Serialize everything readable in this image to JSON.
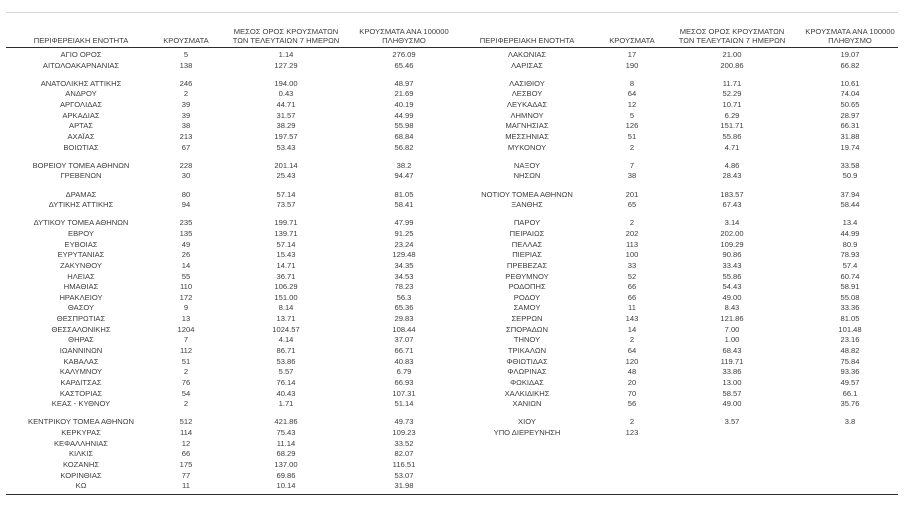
{
  "headers": {
    "region": "ΠΕΡΙΦΕΡΕΙΑΚΗ ΕΝΟΤΗΤΑ",
    "cases": "ΚΡΟΥΣΜΑΤΑ",
    "avg_line1": "ΜΕΣΟΣ ΟΡΟΣ ΚΡΟΥΣΜΑΤΩΝ",
    "avg_line2": "ΤΩΝ ΤΕΛΕΥΤΑΙΩΝ 7 ΗΜΕΡΩΝ",
    "per_line1": "ΚΡΟΥΣΜΑΤΑ ΑΝΑ 100000",
    "per_line2": "ΠΛΗΘΥΣΜΟ"
  },
  "colors": {
    "background": "#ffffff",
    "text": "#3d3d3d",
    "rule_dark": "#2b2b2b",
    "rule_light": "#d6d6d6"
  },
  "tables": {
    "left": {
      "gaps_after": [
        2,
        9,
        11,
        13,
        31
      ],
      "rows": [
        {
          "name": "ΑΓΙΟ ΟΡΟΣ",
          "cases": "5",
          "avg7": "1.14",
          "per100k": "276.09"
        },
        {
          "name": "ΑΙΤΩΛΟΑΚΑΡΝΑΝΙΑΣ",
          "cases": "138",
          "avg7": "127.29",
          "per100k": "65.46"
        },
        {
          "name": "ΑΝΑΤΟΛΙΚΗΣ ΑΤΤΙΚΗΣ",
          "cases": "246",
          "avg7": "194.00",
          "per100k": "48.97"
        },
        {
          "name": "ΑΝΔΡΟΥ",
          "cases": "2",
          "avg7": "0.43",
          "per100k": "21.69"
        },
        {
          "name": "ΑΡΓΟΛΙΔΑΣ",
          "cases": "39",
          "avg7": "44.71",
          "per100k": "40.19"
        },
        {
          "name": "ΑΡΚΑΔΙΑΣ",
          "cases": "39",
          "avg7": "31.57",
          "per100k": "44.99"
        },
        {
          "name": "ΑΡΤΑΣ",
          "cases": "38",
          "avg7": "38.29",
          "per100k": "55.98"
        },
        {
          "name": "ΑΧΑΪΑΣ",
          "cases": "213",
          "avg7": "197.57",
          "per100k": "68.84"
        },
        {
          "name": "ΒΟΙΩΤΙΑΣ",
          "cases": "67",
          "avg7": "53.43",
          "per100k": "56.82"
        },
        {
          "name": "ΒΟΡΕΙΟΥ ΤΟΜΕΑ ΑΘΗΝΩΝ",
          "cases": "228",
          "avg7": "201.14",
          "per100k": "38.2"
        },
        {
          "name": "ΓΡΕΒΕΝΩΝ",
          "cases": "30",
          "avg7": "25.43",
          "per100k": "94.47"
        },
        {
          "name": "ΔΡΑΜΑΣ",
          "cases": "80",
          "avg7": "57.14",
          "per100k": "81.05"
        },
        {
          "name": "ΔΥΤΙΚΗΣ ΑΤΤΙΚΗΣ",
          "cases": "94",
          "avg7": "73.57",
          "per100k": "58.41"
        },
        {
          "name": "ΔΥΤΙΚΟΥ ΤΟΜΕΑ ΑΘΗΝΩΝ",
          "cases": "235",
          "avg7": "199.71",
          "per100k": "47.99"
        },
        {
          "name": "ΕΒΡΟΥ",
          "cases": "135",
          "avg7": "139.71",
          "per100k": "91.25"
        },
        {
          "name": "ΕΥΒΟΙΑΣ",
          "cases": "49",
          "avg7": "57.14",
          "per100k": "23.24"
        },
        {
          "name": "ΕΥΡΥΤΑΝΙΑΣ",
          "cases": "26",
          "avg7": "15.43",
          "per100k": "129.48"
        },
        {
          "name": "ΖΑΚΥΝΘΟΥ",
          "cases": "14",
          "avg7": "14.71",
          "per100k": "34.35"
        },
        {
          "name": "ΗΛΕΙΑΣ",
          "cases": "55",
          "avg7": "36.71",
          "per100k": "34.53"
        },
        {
          "name": "ΗΜΑΘΙΑΣ",
          "cases": "110",
          "avg7": "106.29",
          "per100k": "78.23"
        },
        {
          "name": "ΗΡΑΚΛΕΙΟΥ",
          "cases": "172",
          "avg7": "151.00",
          "per100k": "56.3"
        },
        {
          "name": "ΘΑΣΟΥ",
          "cases": "9",
          "avg7": "8.14",
          "per100k": "65.36"
        },
        {
          "name": "ΘΕΣΠΡΩΤΙΑΣ",
          "cases": "13",
          "avg7": "13.71",
          "per100k": "29.83"
        },
        {
          "name": "ΘΕΣΣΑΛΟΝΙΚΗΣ",
          "cases": "1204",
          "avg7": "1024.57",
          "per100k": "108.44"
        },
        {
          "name": "ΘΗΡΑΣ",
          "cases": "7",
          "avg7": "4.14",
          "per100k": "37.07"
        },
        {
          "name": "ΙΩΑΝΝΙΝΩΝ",
          "cases": "112",
          "avg7": "86.71",
          "per100k": "66.71"
        },
        {
          "name": "ΚΑΒΑΛΑΣ",
          "cases": "51",
          "avg7": "53.86",
          "per100k": "40.83"
        },
        {
          "name": "ΚΑΛΥΜΝΟΥ",
          "cases": "2",
          "avg7": "5.57",
          "per100k": "6.79"
        },
        {
          "name": "ΚΑΡΔΙΤΣΑΣ",
          "cases": "76",
          "avg7": "76.14",
          "per100k": "66.93"
        },
        {
          "name": "ΚΑΣΤΟΡΙΑΣ",
          "cases": "54",
          "avg7": "40.43",
          "per100k": "107.31"
        },
        {
          "name": "ΚΕΑΣ - ΚΥΘΝΟΥ",
          "cases": "2",
          "avg7": "1.71",
          "per100k": "51.14"
        },
        {
          "name": "ΚΕΝΤΡΙΚΟΥ ΤΟΜΕΑ ΑΘΗΝΩΝ",
          "cases": "512",
          "avg7": "421.86",
          "per100k": "49.73"
        },
        {
          "name": "ΚΕΡΚΥΡΑΣ",
          "cases": "114",
          "avg7": "75.43",
          "per100k": "109.23"
        },
        {
          "name": "ΚΕΦΑΛΛΗΝΙΑΣ",
          "cases": "12",
          "avg7": "11.14",
          "per100k": "33.52"
        },
        {
          "name": "ΚΙΛΚΙΣ",
          "cases": "66",
          "avg7": "68.29",
          "per100k": "82.07"
        },
        {
          "name": "ΚΟΖΑΝΗΣ",
          "cases": "175",
          "avg7": "137.00",
          "per100k": "116.51"
        },
        {
          "name": "ΚΟΡΙΝΘΙΑΣ",
          "cases": "77",
          "avg7": "69.86",
          "per100k": "53.07"
        },
        {
          "name": "ΚΩ",
          "cases": "11",
          "avg7": "10.14",
          "per100k": "31.98"
        }
      ]
    },
    "right": {
      "gaps_after": [
        2,
        9,
        11,
        13,
        31
      ],
      "rows": [
        {
          "name": "ΛΑΚΩΝΙΑΣ",
          "cases": "17",
          "avg7": "21.00",
          "per100k": "19.07"
        },
        {
          "name": "ΛΑΡΙΣΑΣ",
          "cases": "190",
          "avg7": "200.86",
          "per100k": "66.82"
        },
        {
          "name": "ΛΑΣΙΘΙΟΥ",
          "cases": "8",
          "avg7": "11.71",
          "per100k": "10.61"
        },
        {
          "name": "ΛΕΣΒΟΥ",
          "cases": "64",
          "avg7": "52.29",
          "per100k": "74.04"
        },
        {
          "name": "ΛΕΥΚΑΔΑΣ",
          "cases": "12",
          "avg7": "10.71",
          "per100k": "50.65"
        },
        {
          "name": "ΛΗΜΝΟΥ",
          "cases": "5",
          "avg7": "6.29",
          "per100k": "28.97"
        },
        {
          "name": "ΜΑΓΝΗΣΙΑΣ",
          "cases": "126",
          "avg7": "151.71",
          "per100k": "66.31"
        },
        {
          "name": "ΜΕΣΣΗΝΙΑΣ",
          "cases": "51",
          "avg7": "55.86",
          "per100k": "31.88"
        },
        {
          "name": "ΜΥΚΟΝΟΥ",
          "cases": "2",
          "avg7": "4.71",
          "per100k": "19.74"
        },
        {
          "name": "ΝΑΞΟΥ",
          "cases": "7",
          "avg7": "4.86",
          "per100k": "33.58"
        },
        {
          "name": "ΝΗΣΩΝ",
          "cases": "38",
          "avg7": "28.43",
          "per100k": "50.9"
        },
        {
          "name": "ΝΟΤΙΟΥ ΤΟΜΕΑ ΑΘΗΝΩΝ",
          "cases": "201",
          "avg7": "183.57",
          "per100k": "37.94"
        },
        {
          "name": "ΞΑΝΘΗΣ",
          "cases": "65",
          "avg7": "67.43",
          "per100k": "58.44"
        },
        {
          "name": "ΠΑΡΟΥ",
          "cases": "2",
          "avg7": "3.14",
          "per100k": "13.4"
        },
        {
          "name": "ΠΕΙΡΑΙΩΣ",
          "cases": "202",
          "avg7": "202.00",
          "per100k": "44.99"
        },
        {
          "name": "ΠΕΛΛΑΣ",
          "cases": "113",
          "avg7": "109.29",
          "per100k": "80.9"
        },
        {
          "name": "ΠΙΕΡΙΑΣ",
          "cases": "100",
          "avg7": "90.86",
          "per100k": "78.93"
        },
        {
          "name": "ΠΡΕΒΕΖΑΣ",
          "cases": "33",
          "avg7": "33.43",
          "per100k": "57.4"
        },
        {
          "name": "ΡΕΘΥΜΝΟΥ",
          "cases": "52",
          "avg7": "55.86",
          "per100k": "60.74"
        },
        {
          "name": "ΡΟΔΟΠΗΣ",
          "cases": "66",
          "avg7": "54.43",
          "per100k": "58.91"
        },
        {
          "name": "ΡΟΔΟΥ",
          "cases": "66",
          "avg7": "49.00",
          "per100k": "55.08"
        },
        {
          "name": "ΣΑΜΟΥ",
          "cases": "11",
          "avg7": "8.43",
          "per100k": "33.36"
        },
        {
          "name": "ΣΕΡΡΩΝ",
          "cases": "143",
          "avg7": "121.86",
          "per100k": "81.05"
        },
        {
          "name": "ΣΠΟΡΑΔΩΝ",
          "cases": "14",
          "avg7": "7.00",
          "per100k": "101.48"
        },
        {
          "name": "ΤΗΝΟΥ",
          "cases": "2",
          "avg7": "1.00",
          "per100k": "23.16"
        },
        {
          "name": "ΤΡΙΚΑΛΩΝ",
          "cases": "64",
          "avg7": "68.43",
          "per100k": "48.82"
        },
        {
          "name": "ΦΘΙΩΤΙΔΑΣ",
          "cases": "120",
          "avg7": "119.71",
          "per100k": "75.84"
        },
        {
          "name": "ΦΛΩΡΙΝΑΣ",
          "cases": "48",
          "avg7": "33.86",
          "per100k": "93.36"
        },
        {
          "name": "ΦΩΚΙΔΑΣ",
          "cases": "20",
          "avg7": "13.00",
          "per100k": "49.57"
        },
        {
          "name": "ΧΑΛΚΙΔΙΚΗΣ",
          "cases": "70",
          "avg7": "58.57",
          "per100k": "66.1"
        },
        {
          "name": "ΧΑΝΙΩΝ",
          "cases": "56",
          "avg7": "49.00",
          "per100k": "35.76"
        },
        {
          "name": "ΧΙΟΥ",
          "cases": "2",
          "avg7": "3.57",
          "per100k": "3.8"
        },
        {
          "name": "ΥΠΟ ΔΙΕΡΕΥΝΗΣΗ",
          "cases": "123",
          "avg7": "",
          "per100k": ""
        }
      ]
    }
  }
}
